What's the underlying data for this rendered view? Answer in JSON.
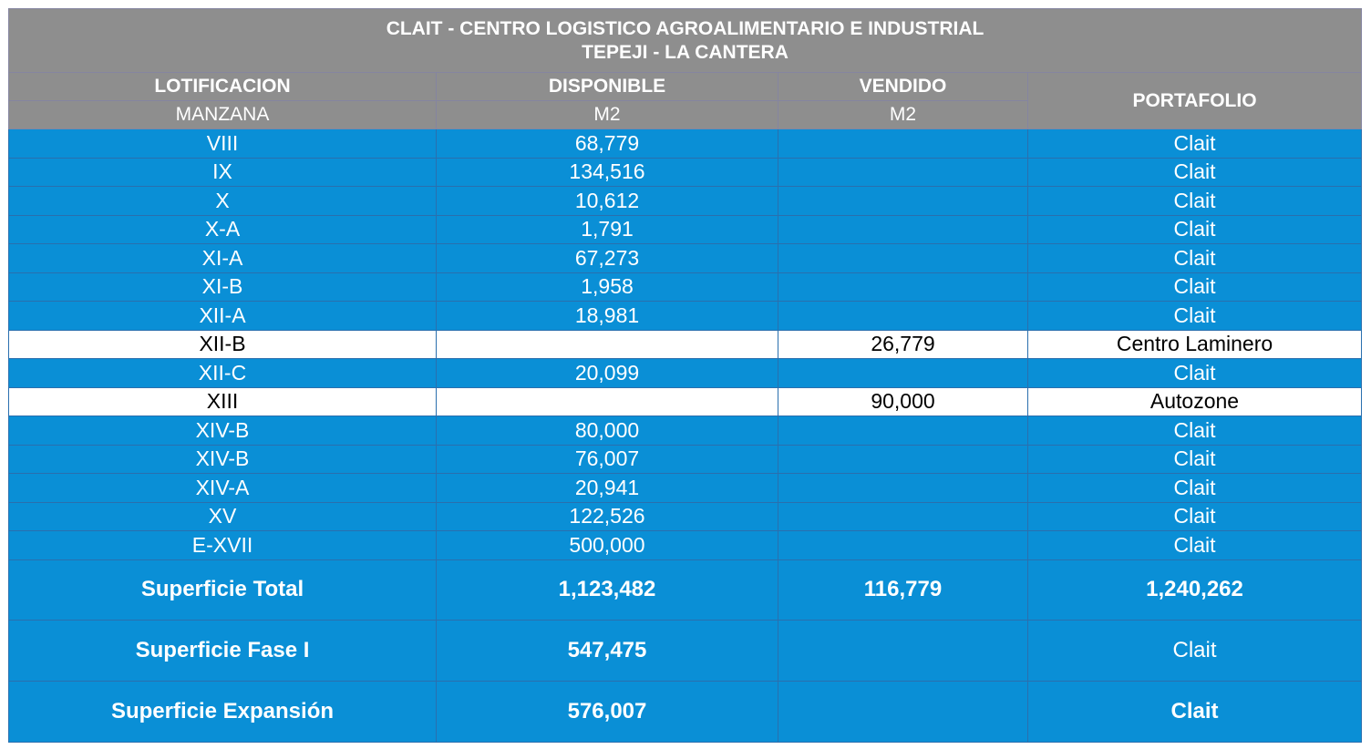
{
  "title_line1": "CLAIT - CENTRO LOGISTICO AGROALIMENTARIO E INDUSTRIAL",
  "title_line2": "TEPEJI - LA CANTERA",
  "headers": {
    "lotificacion": "LOTIFICACION",
    "manzana": "MANZANA",
    "disponible": "DISPONIBLE",
    "disponible_unit": "M2",
    "vendido": "VENDIDO",
    "vendido_unit": "M2",
    "portafolio": "PORTAFOLIO"
  },
  "rows": [
    {
      "manzana": "VIII",
      "disponible": "68,779",
      "vendido": "",
      "portafolio": "Clait"
    },
    {
      "manzana": "IX",
      "disponible": "134,516",
      "vendido": "",
      "portafolio": "Clait"
    },
    {
      "manzana": "X",
      "disponible": "10,612",
      "vendido": "",
      "portafolio": "Clait"
    },
    {
      "manzana": "X-A",
      "disponible": "1,791",
      "vendido": "",
      "portafolio": "Clait"
    },
    {
      "manzana": "XI-A",
      "disponible": "67,273",
      "vendido": "",
      "portafolio": "Clait"
    },
    {
      "manzana": "XI-B",
      "disponible": "1,958",
      "vendido": "",
      "portafolio": "Clait"
    },
    {
      "manzana": "XII-A",
      "disponible": "18,981",
      "vendido": "",
      "portafolio": "Clait"
    },
    {
      "manzana": "XII-B",
      "disponible": "",
      "vendido": "26,779",
      "portafolio": "Centro Laminero",
      "sold": true
    },
    {
      "manzana": "XII-C",
      "disponible": "20,099",
      "vendido": "",
      "portafolio": "Clait"
    },
    {
      "manzana": "XIII",
      "disponible": "",
      "vendido": "90,000",
      "portafolio": "Autozone",
      "sold": true
    },
    {
      "manzana": "XIV-B",
      "disponible": "80,000",
      "vendido": "",
      "portafolio": "Clait"
    },
    {
      "manzana": "XIV-B",
      "disponible": "76,007",
      "vendido": "",
      "portafolio": "Clait"
    },
    {
      "manzana": "XIV-A",
      "disponible": "20,941",
      "vendido": "",
      "portafolio": "Clait"
    },
    {
      "manzana": "XV",
      "disponible": "122,526",
      "vendido": "",
      "portafolio": "Clait"
    },
    {
      "manzana": "E-XVII",
      "disponible": "500,000",
      "vendido": "",
      "portafolio": "Clait"
    }
  ],
  "totals": [
    {
      "label": "Superficie Total",
      "disponible": "1,123,482",
      "vendido": "116,779",
      "portafolio": "1,240,262",
      "portafolio_bold": true
    },
    {
      "label": "Superficie Fase I",
      "disponible": "547,475",
      "vendido": "",
      "portafolio": "Clait",
      "portafolio_bold": false
    },
    {
      "label": "Superficie Expansión",
      "disponible": "576,007",
      "vendido": "",
      "portafolio": "Clait",
      "portafolio_bold": true
    }
  ]
}
